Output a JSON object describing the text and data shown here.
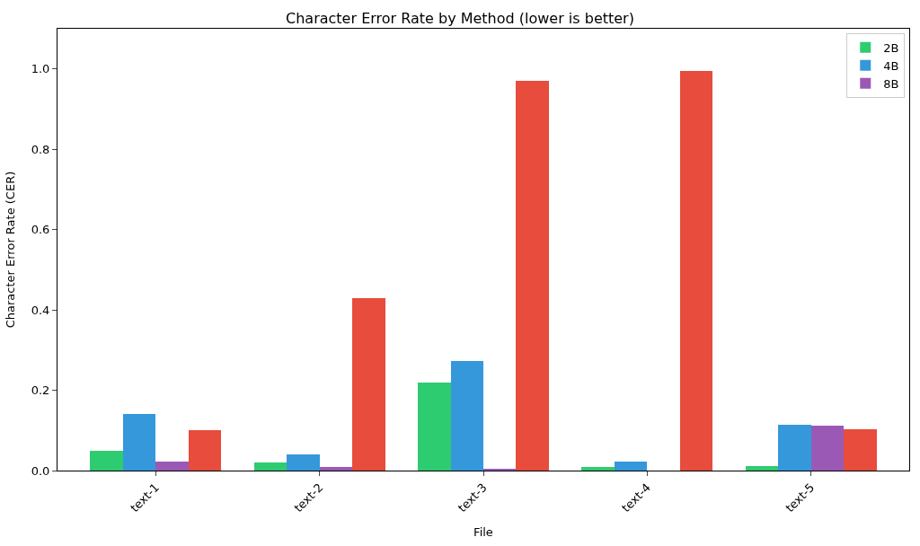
{
  "chart_data": {
    "type": "bar",
    "title": "Character Error Rate by Method (lower is better)",
    "xlabel": "File",
    "ylabel": "Character Error Rate (CER)",
    "categories": [
      "text-1",
      "text-2",
      "text-3",
      "text-4",
      "text-5"
    ],
    "series": [
      {
        "name": "2B",
        "color": "#2ecc71",
        "values": [
          0.05,
          0.02,
          0.22,
          0.008,
          0.012
        ]
      },
      {
        "name": "4B",
        "color": "#3498db",
        "values": [
          0.14,
          0.04,
          0.273,
          0.022,
          0.115
        ]
      },
      {
        "name": "8B",
        "color": "#9b59b6",
        "values": [
          0.022,
          0.01,
          0.005,
          0,
          0.112
        ]
      },
      {
        "color": "#e74c3c",
        "values": [
          0.1,
          0.43,
          0.97,
          0.995,
          0.103
        ]
      }
    ],
    "ylim": [
      0,
      1.1
    ],
    "yticks": [
      {
        "value": 0,
        "label": "0.0"
      },
      {
        "value": 0.2,
        "label": "0.2"
      },
      {
        "value": 0.4,
        "label": "0.4"
      },
      {
        "value": 0.6,
        "label": "0.6"
      },
      {
        "value": 0.8,
        "label": "0.8"
      },
      {
        "value": 1,
        "label": "1.0"
      }
    ],
    "legend": "top right"
  }
}
